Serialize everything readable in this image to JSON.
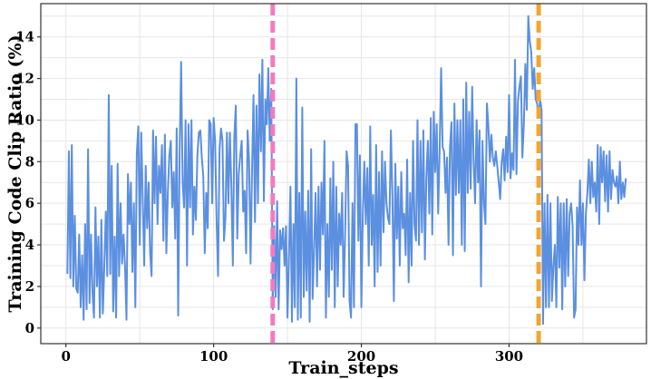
{
  "chart_data": {
    "type": "line",
    "xlabel": "Train_steps",
    "ylabel": "Training Code Clip Ratio (%)",
    "xlim": [
      -17,
      393
    ],
    "ylim": [
      -0.75,
      15.6
    ],
    "xticks": [
      0,
      100,
      200,
      300
    ],
    "yticks": [
      0,
      2,
      4,
      6,
      8,
      10,
      12,
      14
    ],
    "grid": true,
    "vlines": [
      {
        "x": 140,
        "color": "#f27bc0",
        "style": "dashed"
      },
      {
        "x": 320,
        "color": "#f3a530",
        "style": "dashed"
      }
    ],
    "series": [
      {
        "color": "#5b8fe0",
        "x_start": 1,
        "x_step": 1,
        "values": [
          2.6,
          8.5,
          2.4,
          8.8,
          2.0,
          5.4,
          1.9,
          1.7,
          4.5,
          1.0,
          3.5,
          0.4,
          5.0,
          0.9,
          8.6,
          1.2,
          4.5,
          1.7,
          0.5,
          5.8,
          2.0,
          4.4,
          0.5,
          5.2,
          0.7,
          3.0,
          5.6,
          2.5,
          11.2,
          2.6,
          7.8,
          0.8,
          4.4,
          0.5,
          7.9,
          2.5,
          6.0,
          3.1,
          4.5,
          3.0,
          0.4,
          7.4,
          5.0,
          7.0,
          2.7,
          6.0,
          1.0,
          8.4,
          9.7,
          4.0,
          9.4,
          6.2,
          3.0,
          7.8,
          4.8,
          7.0,
          3.6,
          2.5,
          9.5,
          6.0,
          9.2,
          5.0,
          7.8,
          6.5,
          8.8,
          4.2,
          9.3,
          3.6,
          6.5,
          8.3,
          9.0,
          5.8,
          7.5,
          4.3,
          9.6,
          0.6,
          8.6,
          12.8,
          7.0,
          5.8,
          10.0,
          3.0,
          9.8,
          5.8,
          10.0,
          4.5,
          6.8,
          5.2,
          8.3,
          9.4,
          9.5,
          8.2,
          7.3,
          3.6,
          6.5,
          4.8,
          10.0,
          9.8,
          6.0,
          10.1,
          9.0,
          5.2,
          2.5,
          8.6,
          9.6,
          9.0,
          4.2,
          5.3,
          9.4,
          6.0,
          9.4,
          6.8,
          3.0,
          9.2,
          10.7,
          4.3,
          7.4,
          8.3,
          9.0,
          5.6,
          6.6,
          3.6,
          9.5,
          8.0,
          3.1,
          7.6,
          11.2,
          5.1,
          10.7,
          6.0,
          12.2,
          8.5,
          12.9,
          6.1,
          11.0,
          9.8,
          12.5,
          9.0,
          11.5,
          0.9,
          4.9,
          1.5,
          6.1,
          0.9,
          4.7,
          3.8,
          4.8,
          3.0,
          4.9,
          0.5,
          3.4,
          6.8,
          0.3,
          5.0,
          1.0,
          12.0,
          0.4,
          6.5,
          0.5,
          10.6,
          1.5,
          5.6,
          1.8,
          6.6,
          0.3,
          8.6,
          1.4,
          3.7,
          6.5,
          2.0,
          6.8,
          2.8,
          7.0,
          4.5,
          9.0,
          0.5,
          5.0,
          1.5,
          7.2,
          2.8,
          8.0,
          1.0,
          6.8,
          2.0,
          5.5,
          4.0,
          6.5,
          1.5,
          4.5,
          8.5,
          7.8,
          1.3,
          0.5,
          6.0,
          1.0,
          9.8,
          9.8,
          4.2,
          8.3,
          1.0,
          5.5,
          8.0,
          5.0,
          7.7,
          3.0,
          9.7,
          4.0,
          6.4,
          2.0,
          8.8,
          2.7,
          7.5,
          3.0,
          8.5,
          4.6,
          8.0,
          6.0,
          5.3,
          5.0,
          9.5,
          6.4,
          1.3,
          7.9,
          4.3,
          6.8,
          3.0,
          7.5,
          4.8,
          5.5,
          3.5,
          8.1,
          2.2,
          6.5,
          3.0,
          9.0,
          5.0,
          4.2,
          10.0,
          4.0,
          9.0,
          4.6,
          9.5,
          3.3,
          7.3,
          9.0,
          5.5,
          10.1,
          4.5,
          10.4,
          7.5,
          9.8,
          5.5,
          8.6,
          12.5,
          8.7,
          8.5,
          6.5,
          8.2,
          4.0,
          8.7,
          9.9,
          3.5,
          10.8,
          6.4,
          10.0,
          6.5,
          10.0,
          4.0,
          11.0,
          3.7,
          11.8,
          6.5,
          10.4,
          6.7,
          11.6,
          8.0,
          6.0,
          10.0,
          7.0,
          9.5,
          2.0,
          9.0,
          6.0,
          5.0,
          10.8,
          9.7,
          8.0,
          9.3,
          8.2,
          7.8,
          8.5,
          7.8,
          7.0,
          6.2,
          8.0,
          8.6,
          7.1,
          9.2,
          7.5,
          11.2,
          7.2,
          8.4,
          7.6,
          12.9,
          7.4,
          10.9,
          11.6,
          12.1,
          8.2,
          9.8,
          12.7,
          10.5,
          15.0,
          13.8,
          13.3,
          11.5,
          12.5,
          11.0,
          10.8,
          10.1,
          11.0,
          10.5,
          0.2,
          6.0,
          1.0,
          6.4,
          1.0,
          6.0,
          1.3,
          3.0,
          4.0,
          1.0,
          6.3,
          2.9,
          6.0,
          0.9,
          6.0,
          2.0,
          6.2,
          2.5,
          5.5,
          6.0,
          4.9,
          0.5,
          0.9,
          5.8,
          4.0,
          7.1,
          4.0,
          6.0,
          2.3,
          5.5,
          6.5,
          8.1,
          6.0,
          8.0,
          6.3,
          7.0,
          5.6,
          8.8,
          5.0,
          8.7,
          7.0,
          8.5,
          6.1,
          8.3,
          5.6,
          8.5,
          6.2,
          7.6,
          7.0,
          6.8,
          7.3,
          6.0,
          8.0,
          6.2,
          7.0,
          6.3,
          7.2
        ]
      }
    ]
  }
}
